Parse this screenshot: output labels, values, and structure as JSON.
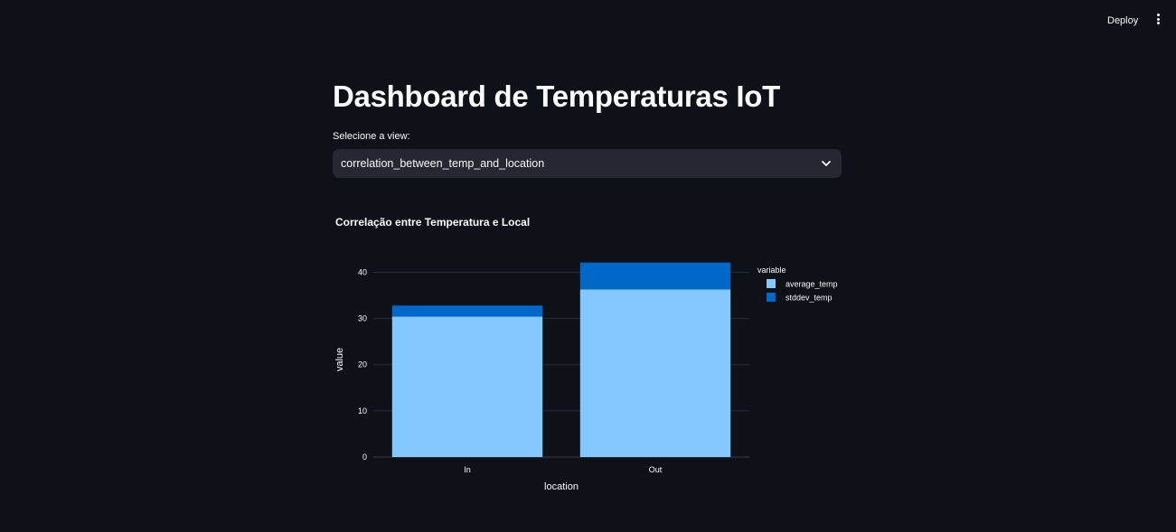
{
  "header": {
    "deploy_label": "Deploy",
    "menu_icon": "more-vertical-icon"
  },
  "main": {
    "title": "Dashboard de Temperaturas IoT",
    "select": {
      "label": "Selecione a view:",
      "value": "correlation_between_temp_and_location",
      "icon": "chevron-down-icon"
    }
  },
  "chart_data": {
    "type": "bar",
    "stacked": true,
    "title": "Correlação entre Temperatura e Local",
    "xlabel": "location",
    "ylabel": "value",
    "categories": [
      "In",
      "Out"
    ],
    "series": [
      {
        "name": "average_temp",
        "values": [
          30.4,
          36.3
        ],
        "color": "#83c9ff"
      },
      {
        "name": "stddev_temp",
        "values": [
          2.4,
          5.8
        ],
        "color": "#0068c9"
      }
    ],
    "ylim": [
      0,
      44
    ],
    "yticks": [
      0,
      10,
      20,
      30,
      40
    ],
    "legend_title": "variable",
    "legend_position": "top-right",
    "grid": true
  }
}
